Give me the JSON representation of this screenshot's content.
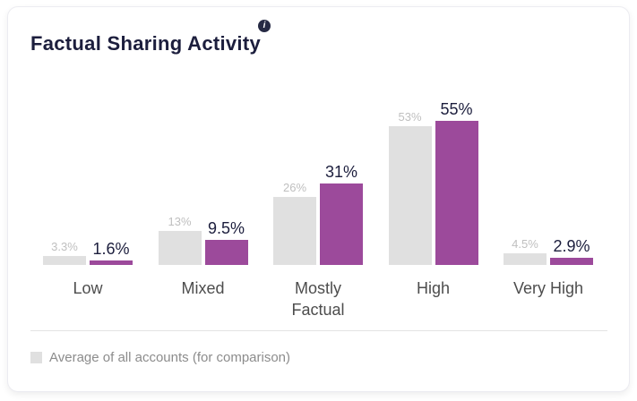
{
  "card": {
    "title": "Factual Sharing Activity",
    "info_glyph": "i"
  },
  "chart_data": {
    "type": "bar",
    "title": "Factual Sharing Activity",
    "categories": [
      "Low",
      "Mixed",
      "Mostly Factual",
      "High",
      "Very High"
    ],
    "series": [
      {
        "name": "Average of all accounts (for comparison)",
        "color": "#e0e0e0",
        "values": [
          3.3,
          13,
          26,
          53,
          4.5
        ],
        "labels": [
          "3.3%",
          "13%",
          "26%",
          "53%",
          "4.5%"
        ]
      },
      {
        "name": "",
        "color": "#9c4a9b",
        "values": [
          1.6,
          9.5,
          31,
          55,
          2.9
        ],
        "labels": [
          "1.6%",
          "9.5%",
          "31%",
          "55%",
          "2.9%"
        ]
      }
    ],
    "ylim": [
      0,
      60
    ],
    "grid": false,
    "value_labels": true,
    "legend_position": "bottom-left"
  },
  "legend": {
    "items": [
      {
        "label": "Average of all accounts (for comparison)",
        "swatch_color": "#e0e0e0"
      }
    ]
  },
  "colors": {
    "accent_purple": "#9c4a9b",
    "average_gray": "#e0e0e0",
    "title_navy": "#1c1e3d",
    "value_label_gray": "#bfbfbf",
    "category_text": "#4d4d4d",
    "legend_text": "#8c8c8c"
  }
}
